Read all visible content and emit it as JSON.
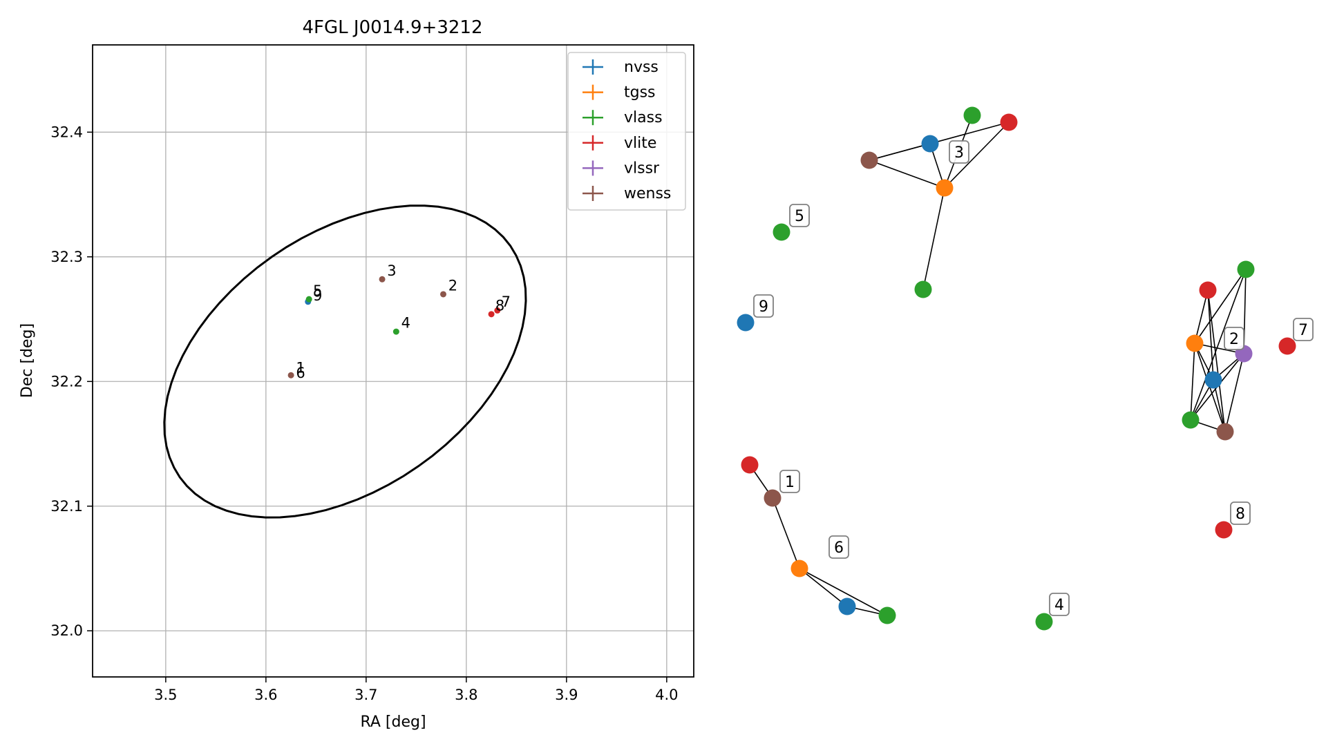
{
  "chart_data": [
    {
      "type": "scatter",
      "title": "4FGL J0014.9+3212",
      "xlabel": "RA [deg]",
      "ylabel": "Dec [deg]",
      "xlim": [
        3.427,
        4.027
      ],
      "ylim": [
        31.963,
        32.47
      ],
      "xticks": [
        3.5,
        3.6,
        3.7,
        3.8,
        3.9,
        4.0
      ],
      "xtick_labels": [
        "3.5",
        "3.6",
        "3.7",
        "3.8",
        "3.9",
        "4.0"
      ],
      "yticks": [
        32.0,
        32.1,
        32.2,
        32.3,
        32.4
      ],
      "ytick_labels": [
        "32.0",
        "32.1",
        "32.2",
        "32.3",
        "32.4"
      ],
      "grid": true,
      "legend_position": "upper right",
      "series": [
        {
          "name": "nvss",
          "color": "#1f77b4",
          "points": [
            {
              "x": 3.642,
              "y": 32.264
            }
          ]
        },
        {
          "name": "tgss",
          "color": "#ff7f0e",
          "points": []
        },
        {
          "name": "vlass",
          "color": "#2ca02c",
          "points": [
            {
              "x": 3.643,
              "y": 32.266
            },
            {
              "x": 3.73,
              "y": 32.24
            }
          ]
        },
        {
          "name": "vlite",
          "color": "#d62728",
          "points": [
            {
              "x": 3.825,
              "y": 32.254
            },
            {
              "x": 3.831,
              "y": 32.257
            }
          ]
        },
        {
          "name": "vlssr",
          "color": "#9467bd",
          "points": []
        },
        {
          "name": "wenss",
          "color": "#8c564b",
          "points": [
            {
              "x": 3.716,
              "y": 32.282
            },
            {
              "x": 3.777,
              "y": 32.27
            },
            {
              "x": 3.625,
              "y": 32.205
            }
          ]
        }
      ],
      "labels": [
        {
          "text": "1",
          "x": 3.63,
          "y": 32.207
        },
        {
          "text": "6",
          "x": 3.63,
          "y": 32.203
        },
        {
          "text": "5",
          "x": 3.647,
          "y": 32.269
        },
        {
          "text": "9",
          "x": 3.647,
          "y": 32.265
        },
        {
          "text": "3",
          "x": 3.721,
          "y": 32.285
        },
        {
          "text": "2",
          "x": 3.782,
          "y": 32.273
        },
        {
          "text": "4",
          "x": 3.735,
          "y": 32.243
        },
        {
          "text": "8",
          "x": 3.829,
          "y": 32.257
        },
        {
          "text": "7",
          "x": 3.835,
          "y": 32.26
        }
      ],
      "ellipse": {
        "center_ra": 3.679,
        "center_dec": 32.216,
        "color": "#000000"
      }
    },
    {
      "type": "network",
      "nodes": [
        {
          "id": "c3-nvss",
          "color": "#1f77b4"
        },
        {
          "id": "c3-tgss",
          "color": "#ff7f0e"
        },
        {
          "id": "c3-vlass-a",
          "color": "#2ca02c"
        },
        {
          "id": "c3-vlite",
          "color": "#d62728"
        },
        {
          "id": "c3-wenss",
          "color": "#8c564b"
        },
        {
          "id": "c3-vlass-b",
          "color": "#2ca02c"
        },
        {
          "id": "c5-vlass",
          "color": "#2ca02c"
        },
        {
          "id": "c9-nvss",
          "color": "#1f77b4"
        },
        {
          "id": "c2-vlass-a",
          "color": "#2ca02c"
        },
        {
          "id": "c2-vlite",
          "color": "#d62728"
        },
        {
          "id": "c2-tgss",
          "color": "#ff7f0e"
        },
        {
          "id": "c2-vlssr",
          "color": "#9467bd"
        },
        {
          "id": "c2-nvss",
          "color": "#1f77b4"
        },
        {
          "id": "c2-vlass-b",
          "color": "#2ca02c"
        },
        {
          "id": "c2-wenss",
          "color": "#8c564b"
        },
        {
          "id": "c7-vlite",
          "color": "#d62728"
        },
        {
          "id": "c1-vlite",
          "color": "#d62728"
        },
        {
          "id": "c1-wenss",
          "color": "#8c564b"
        },
        {
          "id": "c6-tgss",
          "color": "#ff7f0e"
        },
        {
          "id": "c6-nvss",
          "color": "#1f77b4"
        },
        {
          "id": "c6-vlass",
          "color": "#2ca02c"
        },
        {
          "id": "c8-vlite",
          "color": "#d62728"
        },
        {
          "id": "c4-vlass",
          "color": "#2ca02c"
        }
      ],
      "edges": [
        [
          "c3-wenss",
          "c3-nvss"
        ],
        [
          "c3-wenss",
          "c3-tgss"
        ],
        [
          "c3-wenss",
          "c3-vlite"
        ],
        [
          "c3-nvss",
          "c3-tgss"
        ],
        [
          "c3-tgss",
          "c3-vlass-a"
        ],
        [
          "c3-tgss",
          "c3-vlite"
        ],
        [
          "c3-tgss",
          "c3-vlass-b"
        ],
        [
          "c2-vlite",
          "c2-tgss"
        ],
        [
          "c2-vlite",
          "c2-nvss"
        ],
        [
          "c2-vlite",
          "c2-wenss"
        ],
        [
          "c2-vlass-a",
          "c2-tgss"
        ],
        [
          "c2-vlass-a",
          "c2-vlssr"
        ],
        [
          "c2-vlass-a",
          "c2-vlass-b"
        ],
        [
          "c2-tgss",
          "c2-vlssr"
        ],
        [
          "c2-tgss",
          "c2-nvss"
        ],
        [
          "c2-tgss",
          "c2-vlass-b"
        ],
        [
          "c2-tgss",
          "c2-wenss"
        ],
        [
          "c2-vlssr",
          "c2-nvss"
        ],
        [
          "c2-vlssr",
          "c2-vlass-b"
        ],
        [
          "c2-vlssr",
          "c2-wenss"
        ],
        [
          "c2-nvss",
          "c2-vlass-b"
        ],
        [
          "c2-nvss",
          "c2-wenss"
        ],
        [
          "c2-vlass-b",
          "c2-wenss"
        ],
        [
          "c1-vlite",
          "c1-wenss"
        ],
        [
          "c1-wenss",
          "c6-tgss"
        ],
        [
          "c6-tgss",
          "c6-nvss"
        ],
        [
          "c6-tgss",
          "c6-vlass"
        ],
        [
          "c6-nvss",
          "c6-vlass"
        ]
      ],
      "cluster_labels": [
        "3",
        "5",
        "9",
        "2",
        "7",
        "1",
        "6",
        "8",
        "4"
      ]
    }
  ]
}
